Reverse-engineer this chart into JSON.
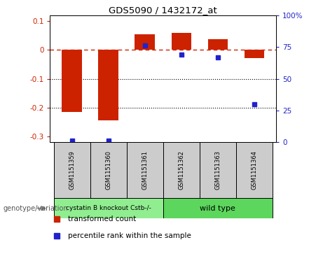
{
  "title": "GDS5090 / 1432172_at",
  "samples": [
    "GSM1151359",
    "GSM1151360",
    "GSM1151361",
    "GSM1151362",
    "GSM1151363",
    "GSM1151364"
  ],
  "red_bars": [
    -0.215,
    -0.245,
    0.055,
    0.06,
    0.038,
    -0.028
  ],
  "blue_dots": [
    1.0,
    1.5,
    76.0,
    69.0,
    67.0,
    30.0
  ],
  "ylim_left": [
    -0.32,
    0.12
  ],
  "ylim_right": [
    0,
    100
  ],
  "group1_label": "cystatin B knockout Cstb-/-",
  "group2_label": "wild type",
  "group1_indices": [
    0,
    1,
    2
  ],
  "group2_indices": [
    3,
    4,
    5
  ],
  "group1_color": "#90ee90",
  "group2_color": "#5cd65c",
  "genotype_label": "genotype/variation",
  "legend_red": "transformed count",
  "legend_blue": "percentile rank within the sample",
  "bar_color": "#cc2200",
  "dot_color": "#2222cc",
  "hline_color": "#cc2200",
  "dotted_line_color": "#000000",
  "bg_plot": "#ffffff",
  "bg_sample": "#cccccc",
  "left_ticks": [
    0.1,
    0,
    -0.1,
    -0.2,
    -0.3
  ],
  "right_ticks": [
    0,
    25,
    50,
    75,
    100
  ]
}
